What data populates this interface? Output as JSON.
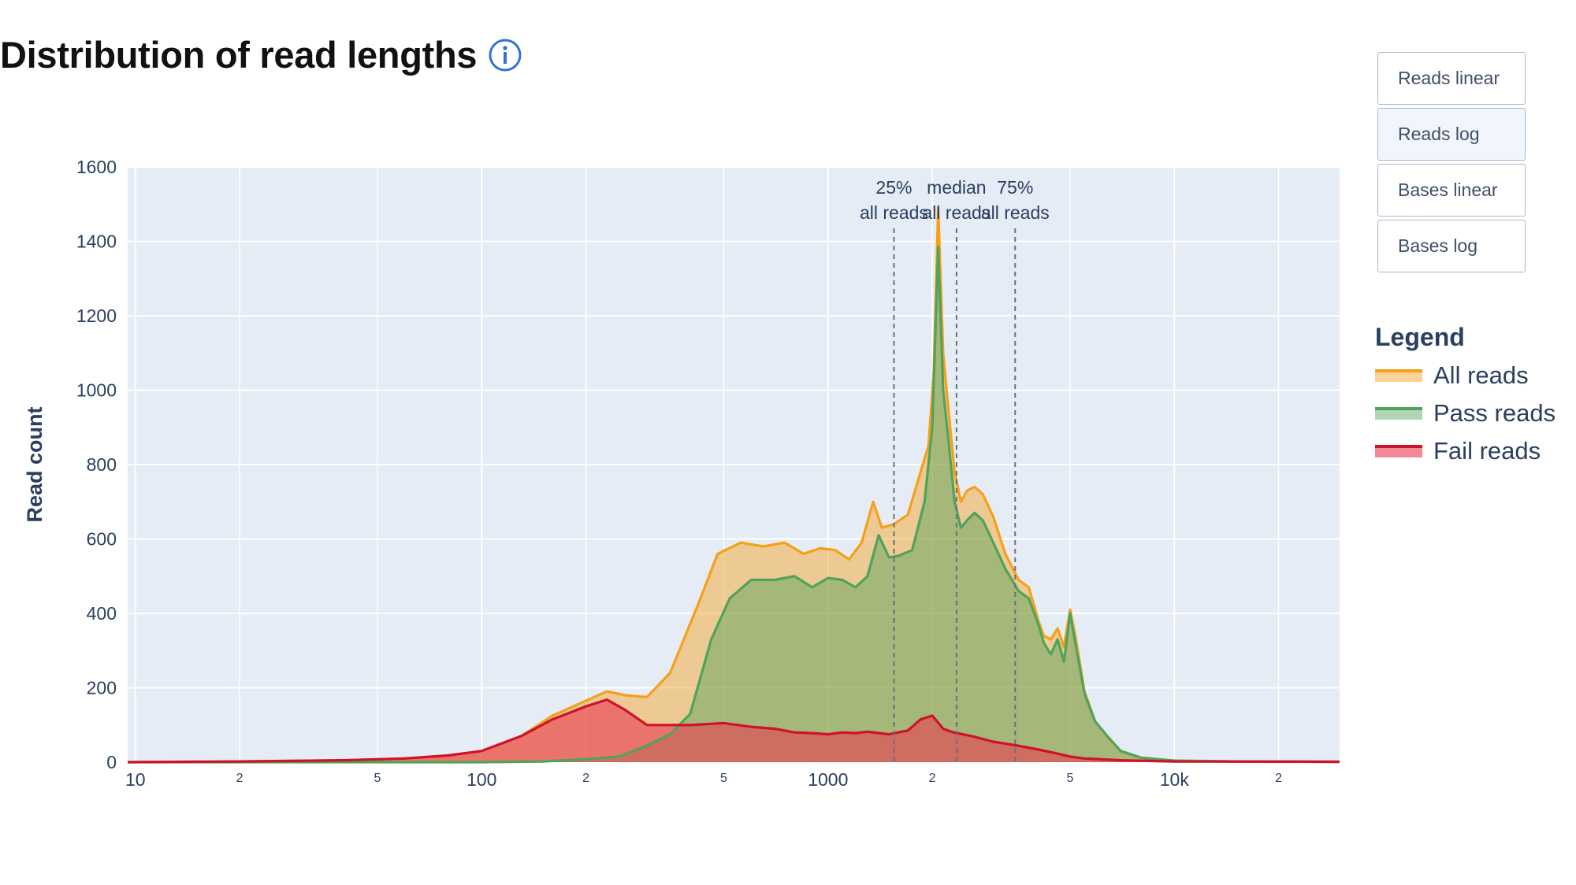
{
  "page": {
    "title": "Distribution of read lengths",
    "info_icon": "info-circle-icon"
  },
  "buttons": [
    {
      "label": "Reads linear",
      "active": false
    },
    {
      "label": "Reads log",
      "active": true
    },
    {
      "label": "Bases linear",
      "active": false
    },
    {
      "label": "Bases log",
      "active": false
    }
  ],
  "legend": {
    "title": "Legend",
    "items": [
      {
        "label": "All reads",
        "line_color": "#f6a01a",
        "fill_color": "rgba(246,160,26,0.45)"
      },
      {
        "label": "Pass reads",
        "line_color": "#4fa35a",
        "fill_color": "rgba(79,163,90,0.45)"
      },
      {
        "label": "Fail reads",
        "line_color": "#d0112b",
        "fill_color": "rgba(232,60,80,0.6)"
      }
    ]
  },
  "chart_data": {
    "type": "area",
    "title": "",
    "xlabel": "",
    "ylabel": "Read count",
    "x_scale": "log",
    "xlim": [
      9.5,
      30000
    ],
    "ylim": [
      0,
      1600
    ],
    "grid": true,
    "y_ticks": [
      "0",
      "200",
      "400",
      "600",
      "800",
      "1000",
      "1200",
      "1400",
      "1600"
    ],
    "x_ticks": [
      {
        "value": 10,
        "label": "10",
        "major": true
      },
      {
        "value": 20,
        "label": "2",
        "major": false
      },
      {
        "value": 50,
        "label": "5",
        "major": false
      },
      {
        "value": 100,
        "label": "100",
        "major": true
      },
      {
        "value": 200,
        "label": "2",
        "major": false
      },
      {
        "value": 500,
        "label": "5",
        "major": false
      },
      {
        "value": 1000,
        "label": "1000",
        "major": true
      },
      {
        "value": 2000,
        "label": "2",
        "major": false
      },
      {
        "value": 5000,
        "label": "5",
        "major": false
      },
      {
        "value": 10000,
        "label": "10k",
        "major": true
      },
      {
        "value": 20000,
        "label": "2",
        "major": false
      }
    ],
    "series": [
      {
        "name": "All reads",
        "color": "#f6a01a",
        "fill": "rgba(246,160,26,0.45)",
        "points": [
          [
            9.5,
            0
          ],
          [
            20,
            2
          ],
          [
            40,
            5
          ],
          [
            60,
            10
          ],
          [
            80,
            18
          ],
          [
            100,
            30
          ],
          [
            130,
            70
          ],
          [
            160,
            125
          ],
          [
            200,
            165
          ],
          [
            230,
            190
          ],
          [
            260,
            180
          ],
          [
            300,
            175
          ],
          [
            350,
            240
          ],
          [
            420,
            420
          ],
          [
            480,
            560
          ],
          [
            560,
            590
          ],
          [
            650,
            580
          ],
          [
            750,
            590
          ],
          [
            850,
            560
          ],
          [
            950,
            575
          ],
          [
            1050,
            570
          ],
          [
            1150,
            545
          ],
          [
            1250,
            590
          ],
          [
            1350,
            700
          ],
          [
            1430,
            630
          ],
          [
            1550,
            640
          ],
          [
            1700,
            665
          ],
          [
            1850,
            780
          ],
          [
            1950,
            850
          ],
          [
            2020,
            1050
          ],
          [
            2080,
            1490
          ],
          [
            2150,
            1100
          ],
          [
            2230,
            940
          ],
          [
            2320,
            780
          ],
          [
            2420,
            700
          ],
          [
            2520,
            730
          ],
          [
            2650,
            740
          ],
          [
            2800,
            720
          ],
          [
            3000,
            660
          ],
          [
            3250,
            560
          ],
          [
            3550,
            490
          ],
          [
            3800,
            470
          ],
          [
            4050,
            380
          ],
          [
            4200,
            340
          ],
          [
            4400,
            330
          ],
          [
            4600,
            360
          ],
          [
            4800,
            310
          ],
          [
            5000,
            410
          ],
          [
            5200,
            330
          ],
          [
            5500,
            190
          ],
          [
            5900,
            110
          ],
          [
            6400,
            70
          ],
          [
            7000,
            30
          ],
          [
            8000,
            12
          ],
          [
            10000,
            4
          ],
          [
            15000,
            2
          ],
          [
            30000,
            1
          ]
        ]
      },
      {
        "name": "Pass reads",
        "color": "#4fa35a",
        "fill": "rgba(79,163,90,0.45)",
        "points": [
          [
            9.5,
            0
          ],
          [
            50,
            0
          ],
          [
            100,
            0
          ],
          [
            150,
            2
          ],
          [
            200,
            8
          ],
          [
            250,
            15
          ],
          [
            300,
            45
          ],
          [
            350,
            75
          ],
          [
            400,
            130
          ],
          [
            460,
            330
          ],
          [
            520,
            440
          ],
          [
            600,
            490
          ],
          [
            700,
            490
          ],
          [
            800,
            500
          ],
          [
            900,
            470
          ],
          [
            1000,
            495
          ],
          [
            1100,
            490
          ],
          [
            1200,
            470
          ],
          [
            1300,
            500
          ],
          [
            1400,
            610
          ],
          [
            1500,
            550
          ],
          [
            1600,
            555
          ],
          [
            1750,
            570
          ],
          [
            1900,
            700
          ],
          [
            2000,
            900
          ],
          [
            2080,
            1385
          ],
          [
            2150,
            1000
          ],
          [
            2230,
            860
          ],
          [
            2320,
            700
          ],
          [
            2420,
            630
          ],
          [
            2520,
            650
          ],
          [
            2650,
            670
          ],
          [
            2800,
            650
          ],
          [
            3000,
            590
          ],
          [
            3250,
            520
          ],
          [
            3550,
            460
          ],
          [
            3800,
            440
          ],
          [
            4050,
            370
          ],
          [
            4200,
            320
          ],
          [
            4400,
            290
          ],
          [
            4600,
            330
          ],
          [
            4800,
            270
          ],
          [
            5000,
            400
          ],
          [
            5200,
            310
          ],
          [
            5500,
            185
          ],
          [
            5900,
            110
          ],
          [
            6400,
            70
          ],
          [
            7000,
            30
          ],
          [
            8000,
            12
          ],
          [
            10000,
            4
          ],
          [
            15000,
            2
          ],
          [
            30000,
            1
          ]
        ]
      },
      {
        "name": "Fail reads",
        "color": "#d0112b",
        "fill": "rgba(232,60,80,0.6)",
        "points": [
          [
            9.5,
            0
          ],
          [
            20,
            2
          ],
          [
            40,
            5
          ],
          [
            60,
            10
          ],
          [
            80,
            18
          ],
          [
            100,
            30
          ],
          [
            130,
            70
          ],
          [
            160,
            115
          ],
          [
            200,
            150
          ],
          [
            230,
            168
          ],
          [
            260,
            140
          ],
          [
            300,
            100
          ],
          [
            400,
            100
          ],
          [
            500,
            105
          ],
          [
            600,
            95
          ],
          [
            700,
            90
          ],
          [
            800,
            80
          ],
          [
            900,
            78
          ],
          [
            1000,
            75
          ],
          [
            1100,
            80
          ],
          [
            1200,
            78
          ],
          [
            1300,
            82
          ],
          [
            1500,
            75
          ],
          [
            1700,
            85
          ],
          [
            1850,
            115
          ],
          [
            2000,
            125
          ],
          [
            2150,
            90
          ],
          [
            2300,
            80
          ],
          [
            2600,
            70
          ],
          [
            3000,
            55
          ],
          [
            3500,
            45
          ],
          [
            4000,
            35
          ],
          [
            4500,
            25
          ],
          [
            5000,
            15
          ],
          [
            5500,
            10
          ],
          [
            7000,
            5
          ],
          [
            10000,
            2
          ],
          [
            30000,
            1
          ]
        ]
      }
    ],
    "annotations": [
      {
        "x": 1550,
        "label_line1": "25%",
        "label_line2": "all reads"
      },
      {
        "x": 2350,
        "label_line1": "median",
        "label_line2": "all reads"
      },
      {
        "x": 3470,
        "label_line1": "75%",
        "label_line2": "all reads"
      }
    ]
  }
}
